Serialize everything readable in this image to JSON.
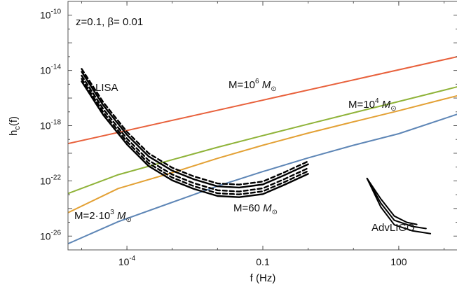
{
  "chart_data": {
    "type": "line",
    "title": "",
    "xlabel": "f (Hz)",
    "ylabel": "h_c(f)",
    "xscale": "log",
    "yscale": "log",
    "xlim": [
      5e-06,
      2000
    ],
    "ylim": [
      1e-27,
      1e-09
    ],
    "grid": false,
    "x_ticks": [
      {
        "value": 0.0001,
        "base": "10",
        "exp": "-4"
      },
      {
        "value": 0.1,
        "label": "0.1"
      },
      {
        "value": 100,
        "label": "100"
      }
    ],
    "y_ticks": [
      {
        "value": 1e-10,
        "base": "10",
        "exp": "-10"
      },
      {
        "value": 1e-14,
        "base": "10",
        "exp": "-14"
      },
      {
        "value": 1e-18,
        "base": "10",
        "exp": "-18"
      },
      {
        "value": 1e-22,
        "base": "10",
        "exp": "-22"
      },
      {
        "value": 1e-26,
        "base": "10",
        "exp": "-26"
      }
    ],
    "series": [
      {
        "name": "M=10^6 M_sun",
        "color": "#e8613c",
        "points": [
          [
            5e-06,
            5e-20
          ],
          [
            2000,
            1e-13
          ]
        ]
      },
      {
        "name": "M=10^4 M_sun",
        "color": "#8fb339",
        "points": [
          [
            5e-06,
            1.2e-23
          ],
          [
            6.4e-05,
            2.8e-22
          ],
          [
            0.001,
            3.4e-21
          ],
          [
            0.01,
            2.7e-20
          ],
          [
            0.1,
            1.9e-19
          ],
          [
            1,
            1.3e-18
          ],
          [
            10,
            8.6e-18
          ],
          [
            100,
            5.6e-17
          ],
          [
            2000,
            6.6e-16
          ]
        ]
      },
      {
        "name": "M=2·10^3 M_sun",
        "color": "#e3a135",
        "points": [
          [
            5e-06,
            5e-25
          ],
          [
            6.4e-05,
            2.8e-23
          ],
          [
            0.001,
            3.9e-22
          ],
          [
            0.01,
            4.3e-21
          ],
          [
            0.1,
            3.8e-20
          ],
          [
            1,
            2.9e-19
          ],
          [
            10,
            1.9e-18
          ],
          [
            100,
            1.2e-17
          ],
          [
            2000,
            1.5e-16
          ]
        ]
      },
      {
        "name": "M=60 M_sun",
        "color": "#5e86b6",
        "points": [
          [
            5e-06,
            2.8e-27
          ],
          [
            6.4e-05,
            1.1e-25
          ],
          [
            0.001,
            2.8e-24
          ],
          [
            0.01,
            4.2e-23
          ],
          [
            0.1,
            4.7e-22
          ],
          [
            1,
            4.6e-21
          ],
          [
            10,
            3.8e-20
          ],
          [
            100,
            2.6e-19
          ],
          [
            2000,
            6.9e-18
          ]
        ]
      },
      {
        "name": "LISA (solid)",
        "color": "#000000",
        "style": "solid",
        "group": "LISA",
        "curves": [
          [
            [
              1e-05,
              8e-15
            ],
            [
              3e-05,
              3e-17
            ],
            [
              0.0001,
              2.2e-19
            ],
            [
              0.0003,
              6e-21
            ],
            [
              0.001,
              5.5e-22
            ],
            [
              0.003,
              1.3e-22
            ],
            [
              0.01,
              4e-23
            ],
            [
              0.03,
              3.3e-23
            ],
            [
              0.1,
              5.5e-23
            ],
            [
              0.3,
              2.6e-22
            ],
            [
              1,
              1.6e-21
            ]
          ],
          [
            [
              1e-05,
              1.6e-15
            ],
            [
              3e-05,
              6e-18
            ],
            [
              0.0001,
              4.4e-20
            ],
            [
              0.0003,
              1.2e-21
            ],
            [
              0.001,
              1.1e-22
            ],
            [
              0.003,
              2.6e-23
            ],
            [
              0.01,
              8e-24
            ],
            [
              0.03,
              6.6e-24
            ],
            [
              0.1,
              1.1e-23
            ],
            [
              0.3,
              5.2e-23
            ],
            [
              1,
              3.2e-22
            ]
          ]
        ]
      },
      {
        "name": "LISA (dashed)",
        "color": "#000000",
        "style": "dashed",
        "group": "LISA",
        "curves": [
          [
            [
              1e-05,
              1.3e-14
            ],
            [
              3e-05,
              5e-17
            ],
            [
              0.0001,
              3.6e-19
            ],
            [
              0.0003,
              1e-20
            ],
            [
              0.001,
              9e-22
            ],
            [
              0.003,
              2.1e-22
            ],
            [
              0.01,
              6.5e-23
            ],
            [
              0.03,
              5.4e-23
            ],
            [
              0.1,
              9e-23
            ],
            [
              0.3,
              4.2e-22
            ],
            [
              1,
              2.6e-21
            ]
          ],
          [
            [
              1e-05,
              4.2e-15
            ],
            [
              3e-05,
              1.6e-17
            ],
            [
              0.0001,
              1.15e-19
            ],
            [
              0.0003,
              3.1e-21
            ],
            [
              0.001,
              2.9e-22
            ],
            [
              0.003,
              6.8e-23
            ],
            [
              0.01,
              2.1e-23
            ],
            [
              0.03,
              1.7e-23
            ],
            [
              0.1,
              2.9e-23
            ],
            [
              0.3,
              1.36e-22
            ],
            [
              1,
              8.4e-22
            ]
          ],
          [
            [
              1e-05,
              2.5e-15
            ],
            [
              3e-05,
              9.5e-18
            ],
            [
              0.0001,
              7e-20
            ],
            [
              0.0003,
              1.9e-21
            ],
            [
              0.001,
              1.75e-22
            ],
            [
              0.003,
              4.1e-23
            ],
            [
              0.01,
              1.27e-23
            ],
            [
              0.03,
              1.05e-23
            ],
            [
              0.1,
              1.75e-23
            ],
            [
              0.3,
              8.2e-23
            ],
            [
              1,
              5.1e-22
            ]
          ]
        ]
      },
      {
        "name": "AdvLIGO",
        "color": "#000000",
        "style": "solid",
        "curves": [
          [
            [
              20,
              1.5e-22
            ],
            [
              40,
              5e-24
            ],
            [
              80,
              2.8e-25
            ],
            [
              150,
              1e-25
            ],
            [
              250,
              7e-26
            ]
          ],
          [
            [
              20,
              1.5e-22
            ],
            [
              40,
              2.5e-24
            ],
            [
              80,
              1.4e-25
            ],
            [
              200,
              5e-26
            ],
            [
              400,
              3.5e-26
            ]
          ],
          [
            [
              20,
              1.5e-22
            ],
            [
              40,
              1.3e-24
            ],
            [
              80,
              6.5e-26
            ],
            [
              200,
              2.4e-26
            ],
            [
              500,
              1.5e-26
            ]
          ]
        ]
      }
    ],
    "annotations": {
      "params": "z=0.1, β= 0.01",
      "lisa": "LISA",
      "advligo": "AdvLIGO",
      "m1e6": {
        "base": "M=10",
        "exp": "6",
        "unit": "M",
        "sub": "⊙"
      },
      "m1e4": {
        "base": "M=10",
        "exp": "4",
        "unit": "M",
        "sub": "⊙"
      },
      "m2e3": {
        "base": "M=2·10",
        "exp": "3",
        "unit": "M",
        "sub": "⊙"
      },
      "m60": {
        "base": "M=60 ",
        "unit": "M",
        "sub": "⊙"
      }
    }
  }
}
